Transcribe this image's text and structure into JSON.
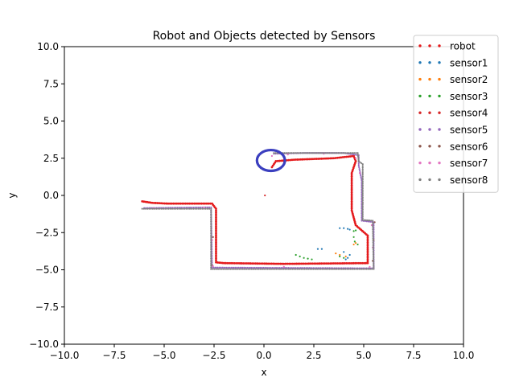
{
  "chart_data": {
    "type": "scatter",
    "title": "Robot and Objects detected by Sensors",
    "xlabel": "x",
    "ylabel": "y",
    "xlim": [
      -10,
      10
    ],
    "ylim": [
      -10,
      10
    ],
    "xticks": [
      -10,
      -7.5,
      -5,
      -2.5,
      0,
      2.5,
      5,
      7.5,
      10
    ],
    "yticks": [
      -10,
      -7.5,
      -5,
      -2.5,
      0,
      2.5,
      5,
      7.5,
      10
    ],
    "xtick_labels": [
      "−10.0",
      "−7.5",
      "−5.0",
      "−2.5",
      "0.0",
      "2.5",
      "5.0",
      "7.5",
      "10.0"
    ],
    "ytick_labels": [
      "−10.0",
      "−7.5",
      "−5.0",
      "−2.5",
      "0.0",
      "2.5",
      "5.0",
      "7.5",
      "10.0"
    ],
    "grid": false,
    "legend_position": "top-right",
    "series": [
      {
        "name": "robot",
        "color": "#e41a1c",
        "path": [
          [
            -6.1,
            -0.4
          ],
          [
            -5.6,
            -0.5
          ],
          [
            -4.8,
            -0.55
          ],
          [
            -2.6,
            -0.55
          ],
          [
            -2.4,
            -0.9
          ],
          [
            -2.4,
            -4.5
          ],
          [
            -2.0,
            -4.55
          ],
          [
            1.0,
            -4.6
          ],
          [
            5.2,
            -4.55
          ],
          [
            5.2,
            -2.7
          ],
          [
            4.6,
            -2.0
          ],
          [
            4.4,
            -1.0
          ],
          [
            4.4,
            1.5
          ],
          [
            4.6,
            2.3
          ],
          [
            4.5,
            2.65
          ],
          [
            3.5,
            2.5
          ],
          [
            1.5,
            2.4
          ],
          [
            0.6,
            2.3
          ],
          [
            0.4,
            1.9
          ]
        ]
      },
      {
        "name": "sensor1",
        "color": "#1f77b4",
        "points": [
          [
            3.8,
            -2.2
          ],
          [
            4.0,
            -2.2
          ],
          [
            4.2,
            -2.25
          ],
          [
            4.3,
            -2.3
          ],
          [
            2.7,
            -3.6
          ],
          [
            2.9,
            -3.6
          ],
          [
            4.0,
            -3.8
          ],
          [
            4.2,
            -4.2
          ],
          [
            4.1,
            -4.3
          ],
          [
            4.3,
            -4.0
          ]
        ]
      },
      {
        "name": "sensor2",
        "color": "#ff7f0e",
        "points": [
          [
            3.6,
            -3.9
          ],
          [
            3.8,
            -4.0
          ],
          [
            4.1,
            -4.1
          ],
          [
            4.5,
            -3.3
          ],
          [
            4.6,
            -3.2
          ]
        ]
      },
      {
        "name": "sensor3",
        "color": "#2ca02c",
        "points": [
          [
            1.6,
            -4.0
          ],
          [
            1.8,
            -4.1
          ],
          [
            2.0,
            -4.2
          ],
          [
            2.2,
            -4.25
          ],
          [
            2.4,
            -4.3
          ],
          [
            3.8,
            -4.1
          ],
          [
            4.0,
            -4.2
          ],
          [
            4.5,
            -2.4
          ],
          [
            4.5,
            -2.8
          ],
          [
            4.55,
            -3.1
          ],
          [
            4.6,
            -2.35
          ],
          [
            4.7,
            -3.3
          ]
        ]
      },
      {
        "name": "sensor4",
        "color": "#d62728",
        "points": [
          [
            0.05,
            0.0
          ]
        ]
      },
      {
        "name": "sensor5",
        "color": "#9467bd",
        "path": [
          [
            0.5,
            2.8
          ],
          [
            2.0,
            2.85
          ],
          [
            4.0,
            2.85
          ],
          [
            4.75,
            2.7
          ],
          [
            4.75,
            2.0
          ],
          [
            4.9,
            1.0
          ],
          [
            4.9,
            -1.7
          ],
          [
            5.5,
            -1.8
          ],
          [
            5.5,
            -4.9
          ],
          [
            -2.6,
            -4.85
          ],
          [
            -2.65,
            -0.8
          ],
          [
            -6.0,
            -0.85
          ]
        ]
      },
      {
        "name": "sensor6",
        "color": "#8c564b",
        "points": [
          [
            5.55,
            -1.8
          ],
          [
            5.5,
            -3.0
          ],
          [
            5.45,
            -4.4
          ],
          [
            -2.6,
            -4.7
          ],
          [
            -2.55,
            -2.8
          ]
        ]
      },
      {
        "name": "sensor7",
        "color": "#e377c2",
        "points": [
          [
            0.4,
            2.65
          ],
          [
            1.2,
            2.75
          ],
          [
            3.0,
            2.8
          ],
          [
            4.6,
            2.5
          ],
          [
            4.8,
            1.5
          ],
          [
            4.95,
            -0.5
          ],
          [
            5.4,
            -2.0
          ],
          [
            5.45,
            -3.5
          ],
          [
            5.3,
            -4.8
          ],
          [
            1.0,
            -4.8
          ],
          [
            -2.55,
            -4.75
          ],
          [
            -2.6,
            -3.0
          ],
          [
            -3.0,
            -0.8
          ],
          [
            -5.5,
            -0.85
          ]
        ]
      },
      {
        "name": "sensor8",
        "color": "#7f7f7f",
        "path": [
          [
            0.5,
            2.85
          ],
          [
            4.7,
            2.85
          ],
          [
            4.75,
            2.3
          ],
          [
            4.95,
            2.1
          ],
          [
            4.95,
            -1.65
          ],
          [
            5.45,
            -1.7
          ],
          [
            5.5,
            -4.95
          ],
          [
            -2.65,
            -4.95
          ],
          [
            -2.65,
            -0.9
          ],
          [
            -6.1,
            -0.9
          ]
        ]
      }
    ],
    "annotation_circle": {
      "center": [
        0.35,
        2.35
      ],
      "radius": 0.7,
      "color": "#3b3fbf"
    }
  }
}
